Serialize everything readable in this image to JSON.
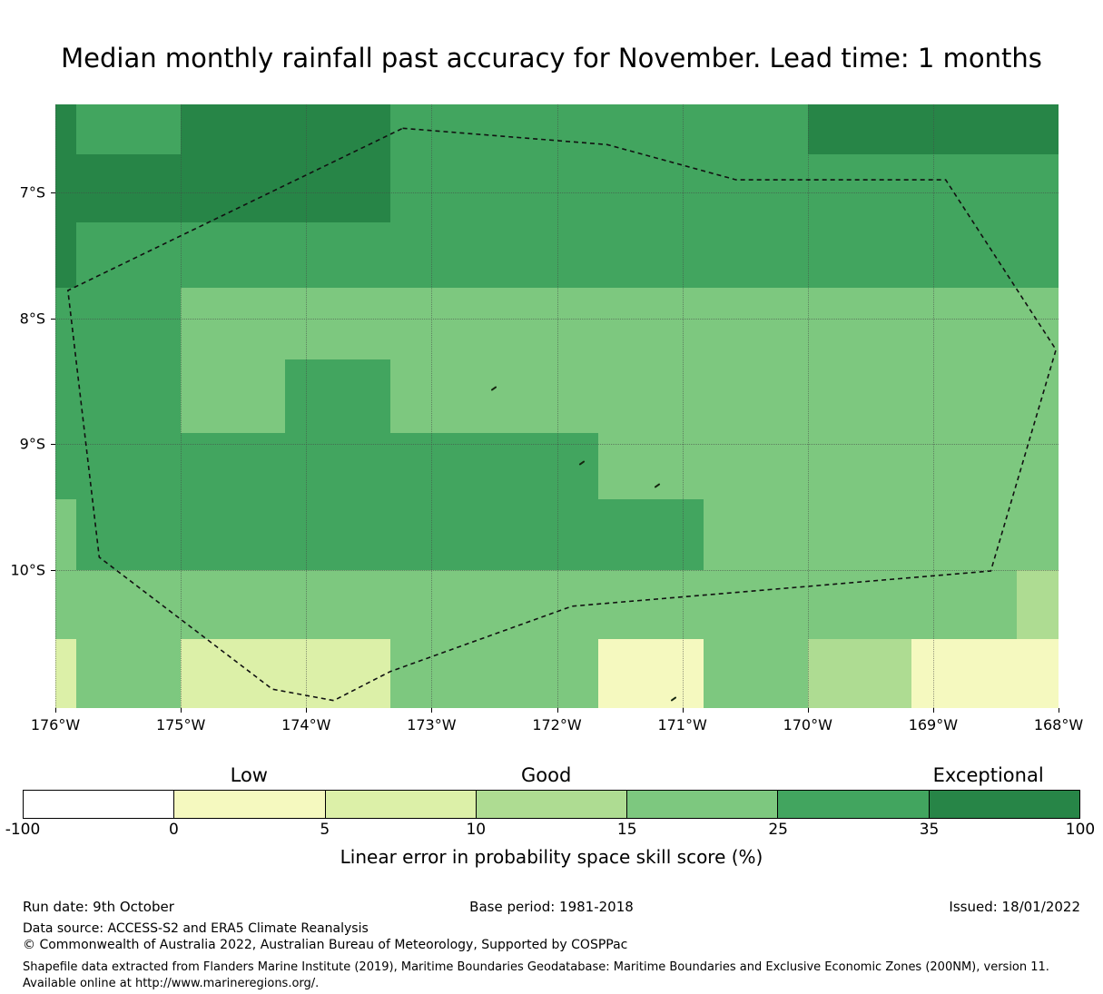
{
  "footer": {
    "run_date": "Run date: 9th October",
    "base_period": "Base period: 1981-2018",
    "issued": "Issued: 18/01/2022",
    "data_source": "Data source: ACCESS-S2 and ERA5 Climate Reanalysis",
    "copyright": "© Commonwealth of Australia 2022, Australian Bureau of Meteorology, Supported by COSPPac",
    "shapefile_note": "Shapefile data extracted from Flanders Marine Institute (2019), Maritime Boundaries Geodatabase: Maritime Boundaries and Exclusive Economic Zones (200NM), version 11. Available online at http://www.marineregions.org/."
  },
  "chart_data": {
    "type": "heatmap",
    "title": "Median monthly rainfall past accuracy for November. Lead time: 1 months",
    "colorbar_label": "Linear error in probability space skill score (%)",
    "map_extent": {
      "lon_min": -176,
      "lon_max": -168,
      "lat_top": -6.3,
      "lat_bottom": -11.1
    },
    "lon_ticks": [
      {
        "lon": -176,
        "label": "176°W"
      },
      {
        "lon": -175,
        "label": "175°W"
      },
      {
        "lon": -174,
        "label": "174°W"
      },
      {
        "lon": -173,
        "label": "173°W"
      },
      {
        "lon": -172,
        "label": "172°W"
      },
      {
        "lon": -171,
        "label": "171°W"
      },
      {
        "lon": -170,
        "label": "170°W"
      },
      {
        "lon": -169,
        "label": "169°W"
      },
      {
        "lon": -168,
        "label": "168°W"
      }
    ],
    "lat_ticks": [
      {
        "lat": -7,
        "label": "7°S"
      },
      {
        "lat": -8,
        "label": "8°S"
      },
      {
        "lat": -9,
        "label": "9°S"
      },
      {
        "lat": -10,
        "label": "10°S"
      }
    ],
    "bins": [
      {
        "key": "W",
        "range": [
          -100,
          0
        ],
        "color": "#ffffff"
      },
      {
        "key": "P",
        "range": [
          0,
          5
        ],
        "color": "#f5f9bf"
      },
      {
        "key": "Y",
        "range": [
          5,
          10
        ],
        "color": "#dcf0a8"
      },
      {
        "key": "L",
        "range": [
          10,
          15
        ],
        "color": "#aedc92"
      },
      {
        "key": "M",
        "range": [
          15,
          25
        ],
        "color": "#7dc87f"
      },
      {
        "key": "G",
        "range": [
          25,
          35
        ],
        "color": "#42a55f"
      },
      {
        "key": "D",
        "range": [
          35,
          100
        ],
        "color": "#278547"
      }
    ],
    "colorbar_ticks": [
      "-100",
      "0",
      "5",
      "10",
      "15",
      "25",
      "35",
      "100"
    ],
    "colorbar_categories": [
      {
        "label": "Low",
        "pos_pct": 21.4
      },
      {
        "label": "Good",
        "pos_pct": 49.5
      },
      {
        "label": "Exceptional",
        "pos_pct": 91.3
      }
    ],
    "grid": {
      "col_bounds": [
        -176,
        -175.83,
        -175,
        -174.17,
        -173.33,
        -172.5,
        -171.67,
        -170.83,
        -170,
        -169.17,
        -168.33,
        -168
      ],
      "row_bounds": [
        -6.3,
        -6.7,
        -7.24,
        -7.76,
        -8.33,
        -8.91,
        -9.44,
        -10.0,
        -10.55,
        -11.1
      ],
      "values": [
        [
          "D",
          "G",
          "D",
          "D",
          "G",
          "G",
          "G",
          "G",
          "D",
          "D",
          "D"
        ],
        [
          "D",
          "D",
          "D",
          "D",
          "G",
          "G",
          "G",
          "G",
          "G",
          "G",
          "G"
        ],
        [
          "D",
          "G",
          "G",
          "G",
          "G",
          "G",
          "G",
          "G",
          "G",
          "G",
          "G"
        ],
        [
          "G",
          "G",
          "M",
          "M",
          "M",
          "M",
          "M",
          "M",
          "M",
          "M",
          "M"
        ],
        [
          "G",
          "G",
          "M",
          "G",
          "M",
          "M",
          "M",
          "M",
          "M",
          "M",
          "M"
        ],
        [
          "G",
          "G",
          "G",
          "G",
          "G",
          "G",
          "M",
          "M",
          "M",
          "M",
          "M"
        ],
        [
          "M",
          "G",
          "G",
          "G",
          "G",
          "G",
          "G",
          "M",
          "M",
          "M",
          "M"
        ],
        [
          "M",
          "M",
          "M",
          "M",
          "M",
          "M",
          "M",
          "M",
          "M",
          "M",
          "L"
        ],
        [
          "Y",
          "M",
          "Y",
          "Y",
          "M",
          "M",
          "P",
          "M",
          "L",
          "P",
          "P"
        ]
      ]
    },
    "eez_boundary": [
      [
        -173.23,
        -6.49
      ],
      [
        -171.6,
        -6.62
      ],
      [
        -170.57,
        -6.9
      ],
      [
        -168.9,
        -6.9
      ],
      [
        -168.02,
        -8.25
      ],
      [
        -168.54,
        -10.01
      ],
      [
        -171.88,
        -10.29
      ],
      [
        -173.33,
        -10.81
      ],
      [
        -173.78,
        -11.04
      ],
      [
        -174.27,
        -10.95
      ],
      [
        -175.65,
        -9.9
      ],
      [
        -175.9,
        -7.78
      ]
    ],
    "islands": [
      [
        -172.5,
        -8.56
      ],
      [
        -171.8,
        -9.15
      ],
      [
        -171.2,
        -9.33
      ],
      [
        -171.07,
        -11.03
      ]
    ]
  }
}
